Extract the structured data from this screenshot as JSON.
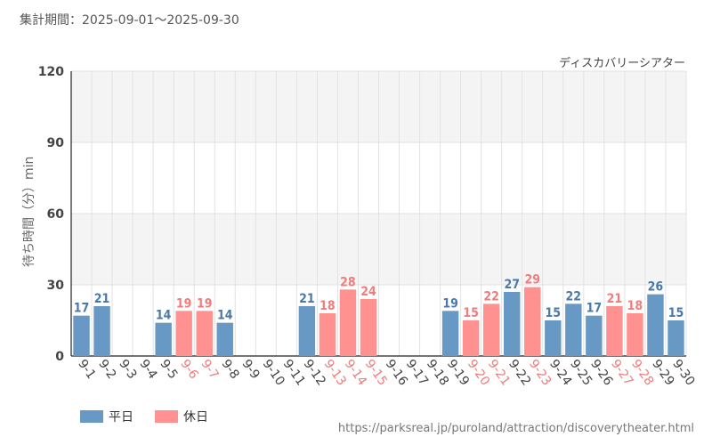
{
  "chart_data": {
    "type": "bar",
    "title": "ディスカバリーシアター",
    "period_label": "集計期間：2025-09-01～2025-09-30",
    "ylabel": "待ち時間（分）min",
    "ylim": [
      0,
      120
    ],
    "yticks": [
      "0",
      "30",
      "60",
      "90",
      "120"
    ],
    "grid": true,
    "legend": [
      {
        "name": "平日",
        "color": "#6899c4"
      },
      {
        "name": "休日",
        "color": "#ff9191"
      }
    ],
    "categories": [
      "9-1",
      "9-2",
      "9-3",
      "9-4",
      "9-5",
      "9-6",
      "9-7",
      "9-8",
      "9-9",
      "9-10",
      "9-11",
      "9-12",
      "9-13",
      "9-14",
      "9-15",
      "9-16",
      "9-17",
      "9-18",
      "9-19",
      "9-20",
      "9-21",
      "9-22",
      "9-23",
      "9-24",
      "9-25",
      "9-26",
      "9-27",
      "9-28",
      "9-29",
      "9-30"
    ],
    "values": [
      17,
      21,
      null,
      null,
      14,
      19,
      19,
      14,
      null,
      null,
      null,
      21,
      18,
      28,
      24,
      null,
      null,
      null,
      19,
      15,
      22,
      27,
      29,
      15,
      22,
      17,
      21,
      18,
      26,
      15
    ],
    "value_labels": [
      "17",
      "21",
      "",
      "",
      "14",
      "19",
      "19",
      "14",
      "",
      "",
      "",
      "21",
      "18",
      "28",
      "24",
      "",
      "",
      "",
      "19",
      "15",
      "22",
      "27",
      "29",
      "15",
      "22",
      "17",
      "21",
      "18",
      "26",
      "15"
    ],
    "day_type": [
      "weekday",
      "weekday",
      "weekday",
      "weekday",
      "weekday",
      "holiday",
      "holiday",
      "weekday",
      "weekday",
      "weekday",
      "weekday",
      "weekday",
      "holiday",
      "holiday",
      "holiday",
      "weekday",
      "weekday",
      "weekday",
      "weekday",
      "holiday",
      "holiday",
      "weekday",
      "holiday",
      "weekday",
      "weekday",
      "weekday",
      "holiday",
      "holiday",
      "weekday",
      "weekday"
    ]
  },
  "colors": {
    "weekday_bar": "#6899c4",
    "holiday_bar": "#ff9191",
    "weekday_text": "#4a78a8",
    "holiday_text": "#f07c7c",
    "band": "#f4f4f4",
    "grid": "#e2e2e2",
    "axis": "#222222"
  },
  "source_url": "https://parksreal.jp/puroland/attraction/discoverytheater.html"
}
